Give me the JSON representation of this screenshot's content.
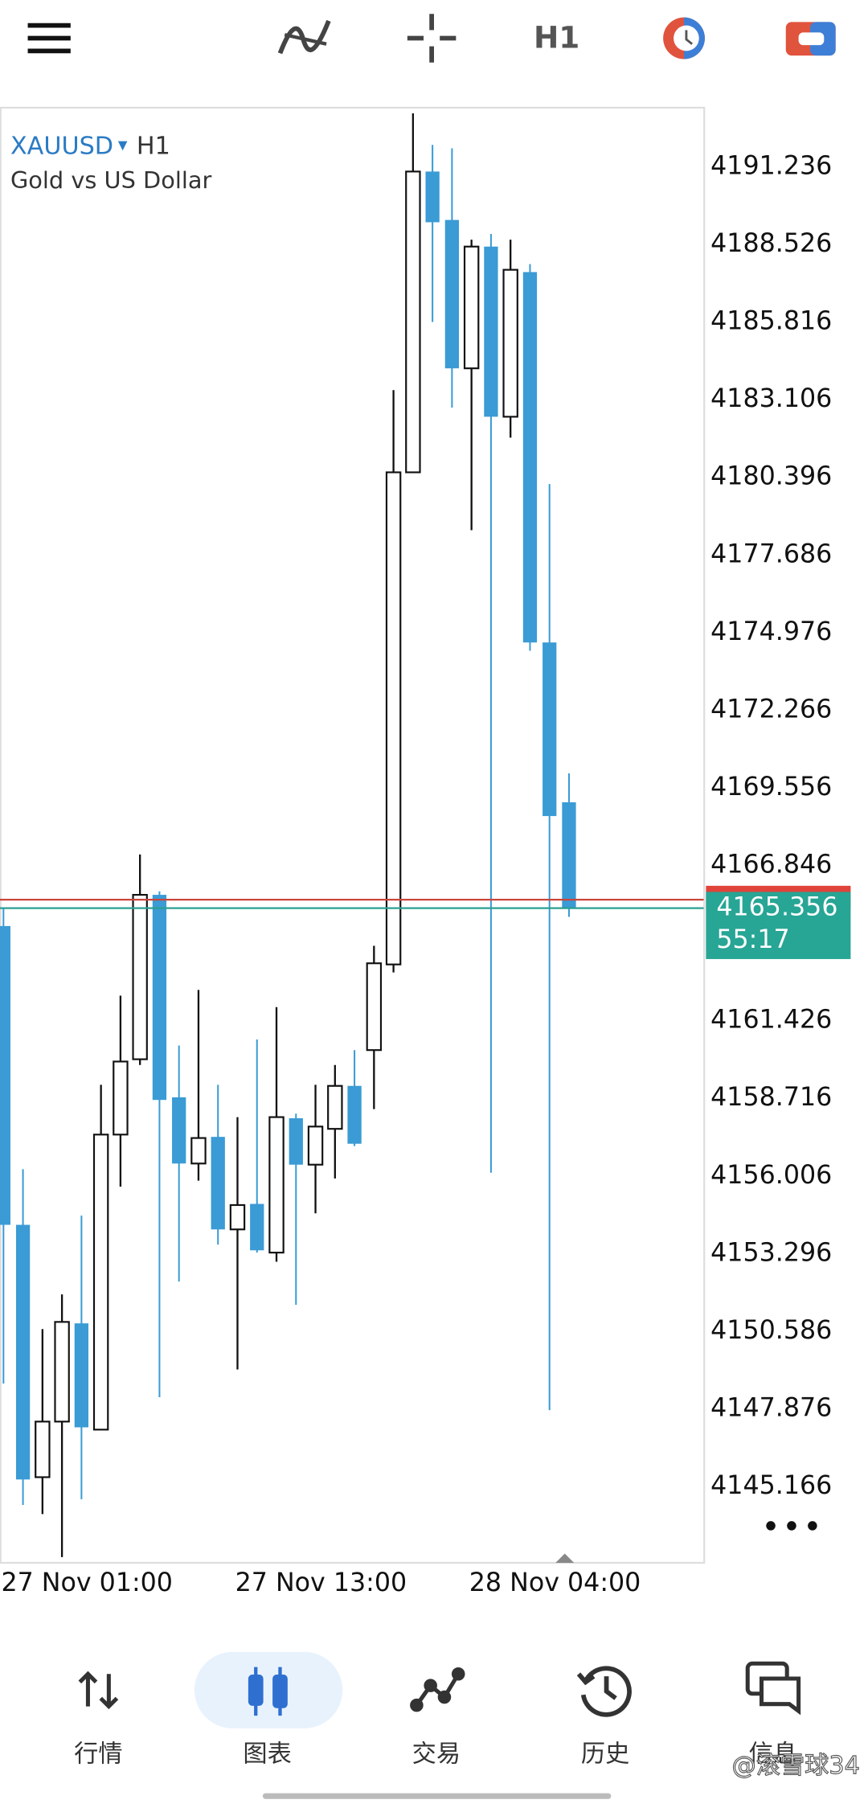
{
  "toolbar": {
    "timeframe": "H1"
  },
  "chart_data": {
    "type": "candlestick",
    "symbol": "XAUUSD",
    "timeframe": "H1",
    "description": "Gold vs US Dollar",
    "categories": [
      "27 Nov 01:00",
      null,
      null,
      null,
      null,
      null,
      null,
      null,
      null,
      null,
      null,
      null,
      "27 Nov 13:00",
      null,
      null,
      null,
      null,
      null,
      null,
      null,
      null,
      null,
      null,
      null,
      "28 Nov 04:00",
      null,
      null,
      null,
      null,
      null
    ],
    "open": [
      4164.73,
      4154.3,
      4145.49,
      4147.43,
      4150.86,
      4147.15,
      4157.45,
      4160.08,
      4165.82,
      4158.75,
      4156.44,
      4157.37,
      4154.14,
      4155.03,
      4153.33,
      4158.02,
      4156.4,
      4157.65,
      4159.15,
      4160.4,
      4163.39,
      4180.57,
      4191.07,
      4189.38,
      4184.2,
      4188.45,
      4182.51,
      4187.56,
      4174.63,
      4169.05
    ],
    "high": [
      4165.33,
      4156.24,
      4150.66,
      4151.87,
      4154.62,
      4159.19,
      4162.3,
      4167.23,
      4165.94,
      4160.56,
      4162.5,
      4159.19,
      4158.06,
      4160.77,
      4161.9,
      4158.18,
      4159.19,
      4159.88,
      4160.4,
      4164.04,
      4183.44,
      4193.1,
      4192.0,
      4191.88,
      4188.69,
      4188.89,
      4188.69,
      4187.84,
      4180.16,
      4170.06
    ],
    "low": [
      4148.76,
      4144.52,
      4144.2,
      4142.7,
      4144.72,
      4147.15,
      4155.63,
      4159.88,
      4148.28,
      4152.32,
      4155.84,
      4153.61,
      4149.25,
      4153.33,
      4153.01,
      4151.51,
      4154.7,
      4155.92,
      4157.05,
      4158.34,
      4163.11,
      4180.57,
      4185.82,
      4182.83,
      4178.55,
      4156.12,
      4181.78,
      4174.34,
      4147.83,
      4165.05
    ],
    "close": [
      4154.3,
      4145.41,
      4147.43,
      4150.91,
      4147.23,
      4157.45,
      4160.0,
      4165.82,
      4158.66,
      4156.44,
      4157.33,
      4154.14,
      4154.99,
      4153.41,
      4158.06,
      4156.4,
      4157.73,
      4159.15,
      4157.13,
      4163.43,
      4180.57,
      4191.07,
      4189.3,
      4184.2,
      4188.45,
      4182.51,
      4187.64,
      4174.63,
      4168.57,
      4165.356
    ],
    "up_color": "#ffffff",
    "down_color": "#3a9bd5",
    "ylim": [
      4142.5,
      4193.3
    ],
    "yticks": [
      4191.236,
      4188.526,
      4185.816,
      4183.106,
      4180.396,
      4177.686,
      4174.976,
      4172.266,
      4169.556,
      4166.846,
      4161.426,
      4158.716,
      4156.006,
      4153.296,
      4150.586,
      4147.876,
      4145.166
    ],
    "bid": 4165.356,
    "ask": 4165.65,
    "timer": "55:17"
  },
  "nav": {
    "items": [
      "行情",
      "图表",
      "交易",
      "历史",
      "信息"
    ],
    "active": 1
  },
  "watermark": "@滚雪球34"
}
